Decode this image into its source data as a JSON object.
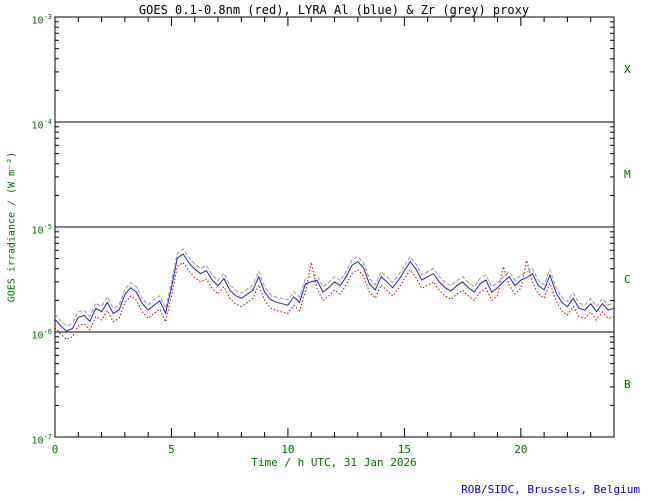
{
  "title": "GOES 0.1-0.8nm (red), LYRA Al (blue) & Zr (grey) proxy",
  "credit": "ROB/SIDC, Brussels, Belgium",
  "colors": {
    "axis_text": "#006e00",
    "title_text": "#000000",
    "credit_text": "#0000cc",
    "frame": "#000000"
  },
  "axes": {
    "x_label": "Time / h UTC, 31 Jan 2026",
    "y_label": "GOES irradiance / (W m⁻²)",
    "x_ticks_major": [
      0,
      5,
      10,
      15,
      20
    ],
    "x_minor_step": 1,
    "y_exponents": [
      -3,
      -4,
      -5,
      -6,
      -7
    ],
    "class_labels": [
      "X",
      "M",
      "C",
      "B"
    ],
    "class_lines_exp": [
      -4,
      -5,
      -6
    ]
  },
  "chart_data": {
    "type": "line",
    "title": "GOES 0.1-0.8nm (red), LYRA Al (blue) & Zr (grey) proxy",
    "xlabel": "Time / h UTC, 31 Jan 2026",
    "ylabel": "GOES irradiance / (W m-2)",
    "xlim": [
      0,
      24
    ],
    "ylim": [
      1e-07,
      0.001
    ],
    "y_scale": "log",
    "grid": false,
    "legend_position": "in-title",
    "x_step": 0.25,
    "value_scale": 1e-06,
    "series": [
      {
        "name": "GOES 0.1-0.8nm",
        "color": "#cc0000",
        "style": "dotted",
        "values_1e6": [
          1.1,
          0.95,
          0.85,
          0.9,
          1.15,
          1.2,
          1.05,
          1.4,
          1.3,
          1.6,
          1.25,
          1.35,
          1.9,
          2.2,
          2.0,
          1.55,
          1.35,
          1.5,
          1.65,
          1.25,
          2.2,
          4.2,
          4.6,
          3.8,
          3.3,
          3.0,
          3.2,
          2.6,
          2.3,
          2.7,
          2.1,
          1.85,
          1.75,
          1.9,
          2.1,
          2.8,
          2.0,
          1.7,
          1.6,
          1.55,
          1.5,
          1.8,
          1.6,
          2.4,
          4.6,
          2.6,
          2.0,
          2.2,
          2.5,
          2.3,
          2.8,
          3.6,
          3.9,
          3.4,
          2.4,
          2.1,
          2.8,
          2.5,
          2.2,
          2.6,
          3.2,
          3.9,
          3.3,
          2.6,
          2.8,
          3.0,
          2.5,
          2.2,
          2.05,
          2.3,
          2.5,
          2.2,
          2.0,
          2.4,
          2.6,
          2.0,
          2.2,
          4.2,
          2.8,
          2.3,
          2.6,
          4.8,
          3.0,
          2.3,
          2.1,
          2.9,
          2.0,
          1.6,
          1.45,
          1.75,
          1.4,
          1.35,
          1.55,
          1.3,
          1.55,
          1.35,
          1.4
        ]
      },
      {
        "name": "LYRA Al proxy",
        "color": "#2222cc",
        "style": "solid",
        "values_1e6": [
          1.32,
          1.14,
          1.02,
          1.08,
          1.38,
          1.44,
          1.26,
          1.68,
          1.56,
          1.92,
          1.5,
          1.62,
          2.28,
          2.64,
          2.4,
          1.86,
          1.62,
          1.8,
          1.98,
          1.5,
          2.64,
          5.04,
          5.52,
          4.56,
          3.96,
          3.6,
          3.84,
          3.12,
          2.76,
          3.24,
          2.52,
          2.22,
          2.1,
          2.28,
          2.52,
          3.36,
          2.4,
          2.04,
          1.92,
          1.86,
          1.8,
          2.16,
          1.92,
          2.88,
          3.0,
          3.12,
          2.4,
          2.64,
          3.0,
          2.76,
          3.36,
          4.32,
          4.68,
          4.08,
          2.88,
          2.52,
          3.36,
          3.0,
          2.64,
          3.12,
          3.84,
          4.68,
          3.96,
          3.12,
          3.36,
          3.6,
          3.0,
          2.64,
          2.46,
          2.76,
          3.0,
          2.64,
          2.4,
          2.88,
          3.12,
          2.4,
          2.64,
          3.0,
          3.36,
          2.76,
          3.12,
          3.3,
          3.6,
          2.76,
          2.52,
          3.48,
          2.4,
          1.92,
          1.74,
          2.1,
          1.68,
          1.62,
          1.86,
          1.56,
          1.86,
          1.62,
          1.68
        ]
      },
      {
        "name": "LYRA Zr proxy",
        "color": "#999999",
        "style": "dashed",
        "values_1e6": [
          1.48,
          1.28,
          1.14,
          1.21,
          1.55,
          1.61,
          1.41,
          1.88,
          1.75,
          2.15,
          1.68,
          1.81,
          2.55,
          2.96,
          2.69,
          2.08,
          1.81,
          2.02,
          2.22,
          1.68,
          2.96,
          5.64,
          6.18,
          5.11,
          4.44,
          4.03,
          4.3,
          3.49,
          3.09,
          3.63,
          2.82,
          2.49,
          2.35,
          2.55,
          2.82,
          3.76,
          2.69,
          2.28,
          2.15,
          2.08,
          2.02,
          2.42,
          2.15,
          3.23,
          3.36,
          3.49,
          2.69,
          2.96,
          3.36,
          3.09,
          3.76,
          4.84,
          5.24,
          4.57,
          3.23,
          2.82,
          3.76,
          3.36,
          2.96,
          3.49,
          4.3,
          5.24,
          4.44,
          3.49,
          3.76,
          4.03,
          3.36,
          2.96,
          2.76,
          3.09,
          3.36,
          2.96,
          2.69,
          3.23,
          3.49,
          2.69,
          2.96,
          3.36,
          3.76,
          3.09,
          3.49,
          3.7,
          4.03,
          3.09,
          2.82,
          3.9,
          2.69,
          2.15,
          1.95,
          2.35,
          1.88,
          1.81,
          2.08,
          1.75,
          2.08,
          1.81,
          1.88
        ]
      }
    ]
  }
}
